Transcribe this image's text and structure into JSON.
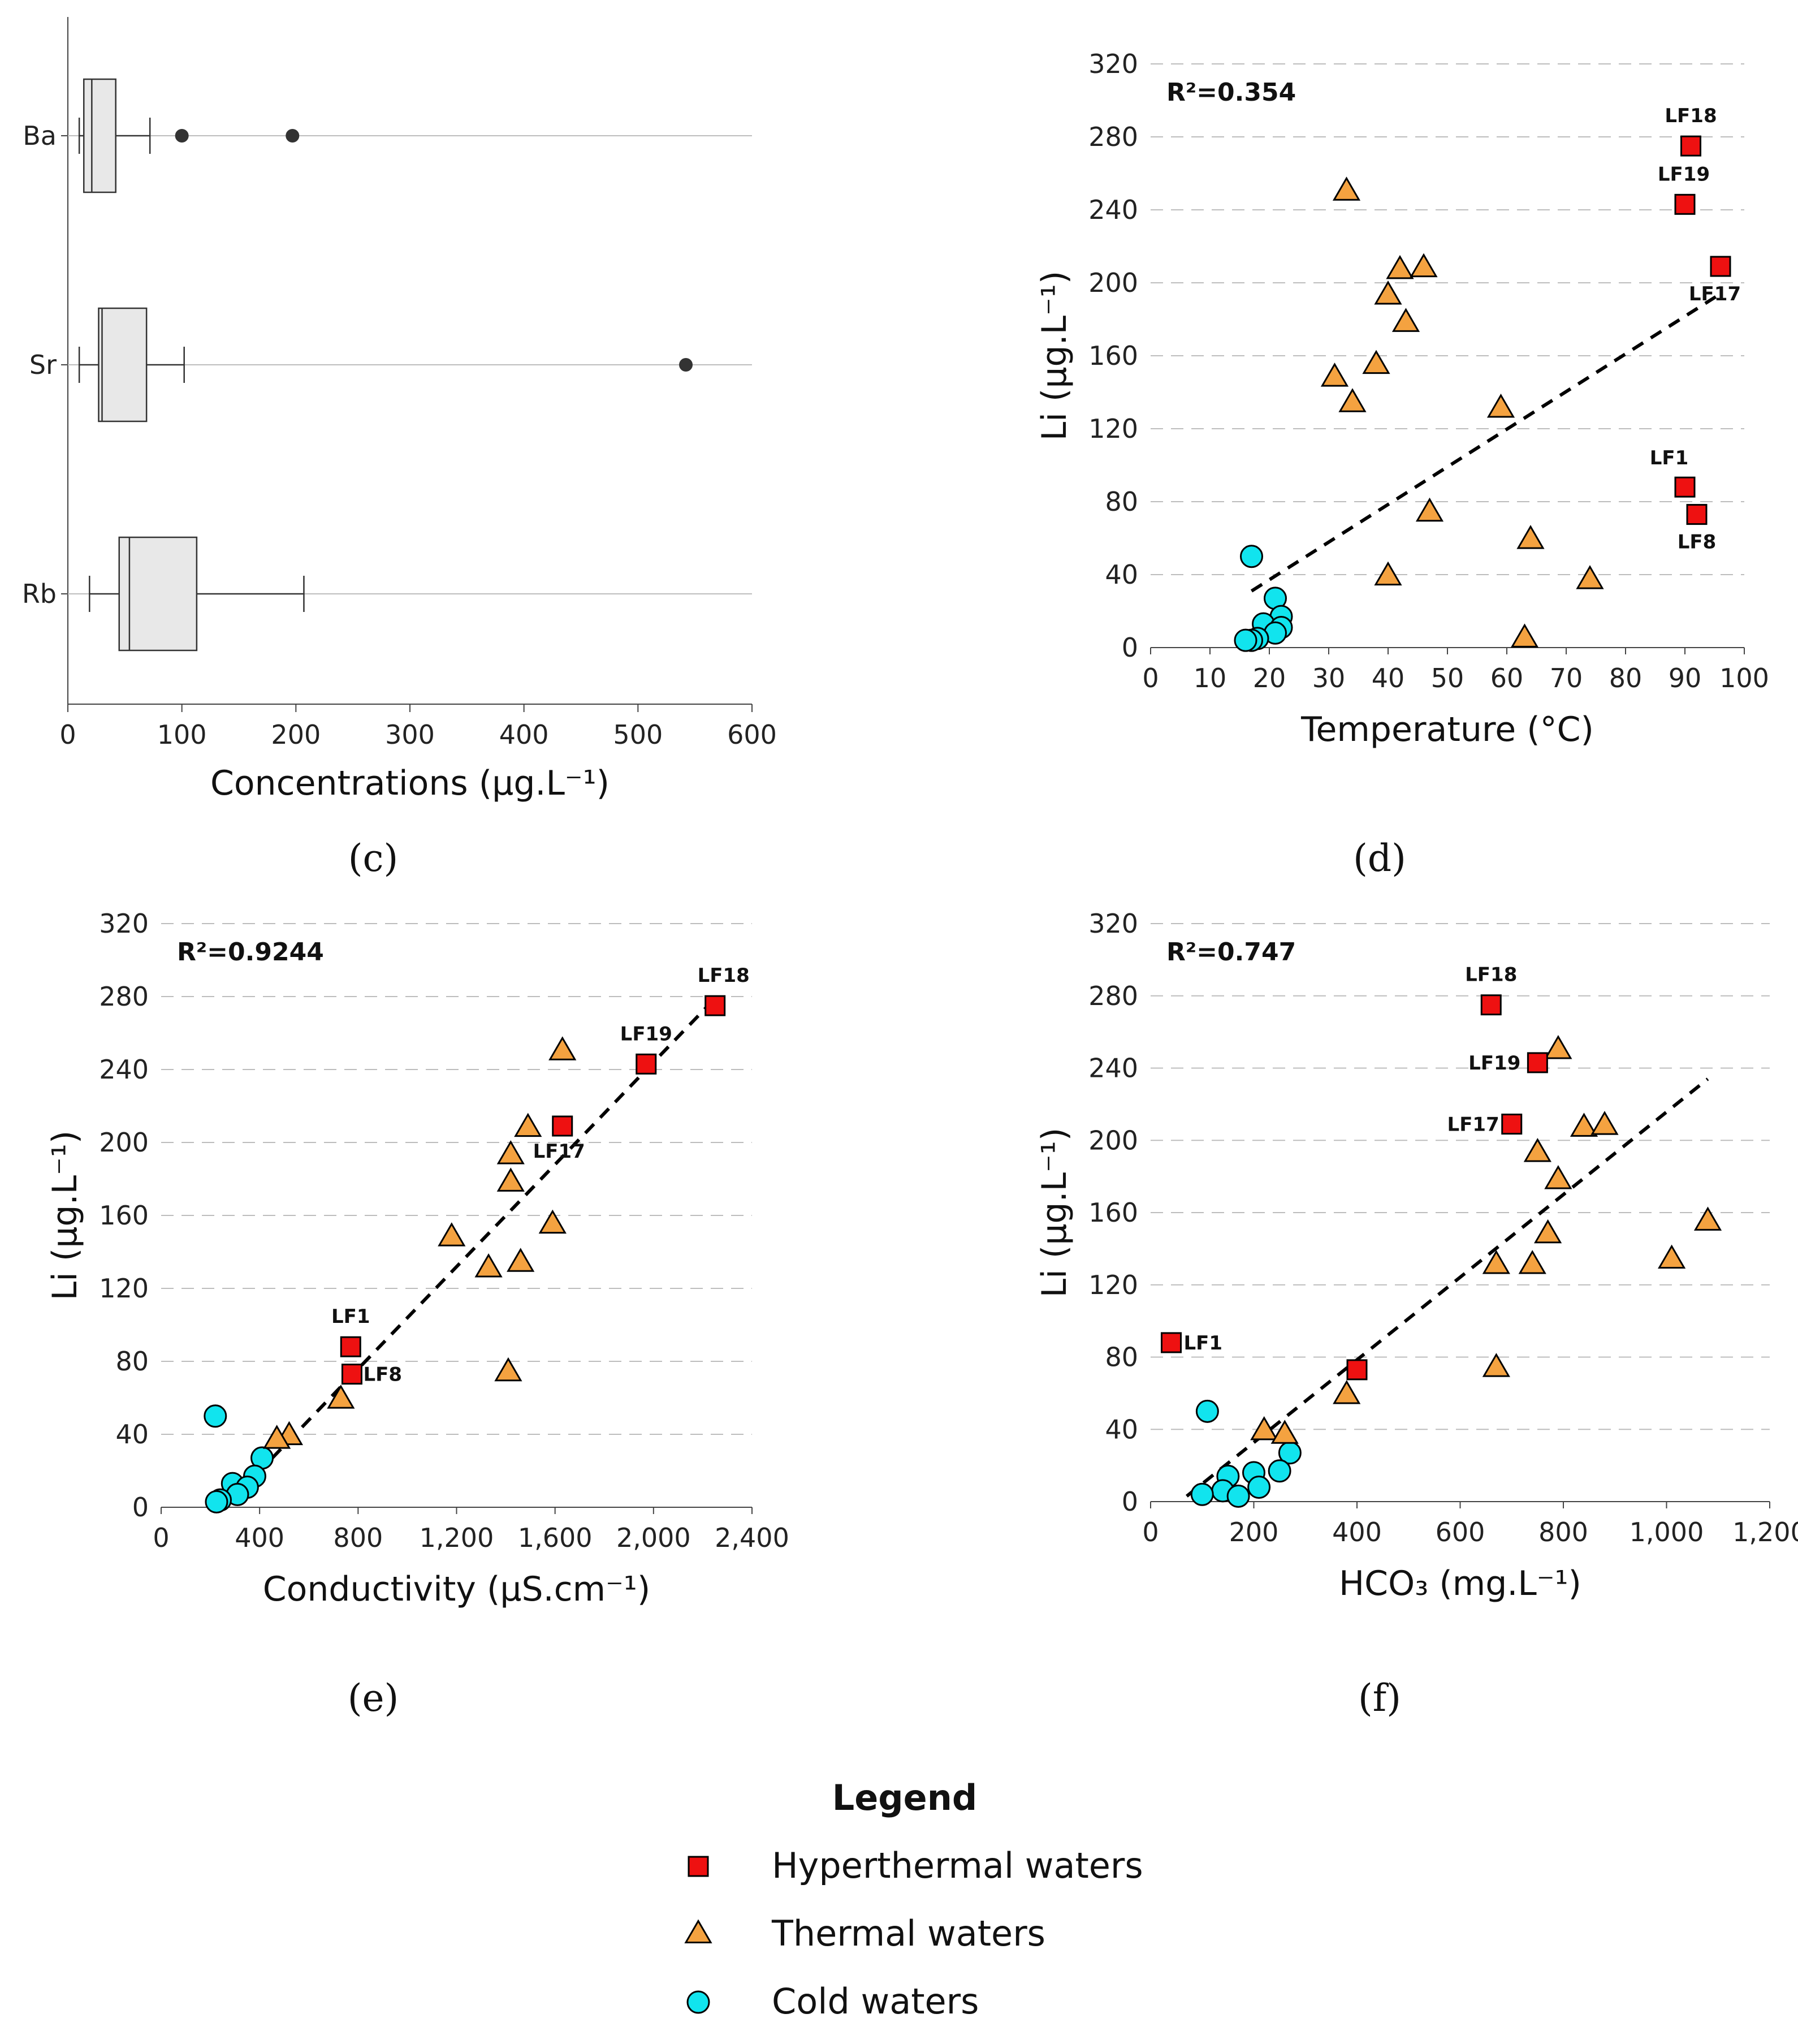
{
  "chart_data": [
    {
      "id": "c",
      "type": "boxplot",
      "caption": "(c)",
      "xlabel": "Concentrations (µg.L⁻¹)",
      "xlim": [
        0,
        600
      ],
      "xticks": [
        0,
        100,
        200,
        300,
        400,
        500,
        600
      ],
      "categories": [
        "Ba",
        "Sr",
        "Rb"
      ],
      "boxes": [
        {
          "label": "Ba",
          "min": 10,
          "q1": 14,
          "median": 21,
          "q3": 42,
          "max": 72,
          "outliers": [
            100,
            197
          ]
        },
        {
          "label": "Sr",
          "min": 10,
          "q1": 27,
          "median": 30,
          "q3": 69,
          "max": 102,
          "outliers": [
            542
          ]
        },
        {
          "label": "Rb",
          "min": 19,
          "q1": 45,
          "median": 54,
          "q3": 113,
          "max": 207,
          "outliers": []
        }
      ]
    },
    {
      "id": "d",
      "type": "scatter",
      "caption": "(d)",
      "r2": "R²=0.354",
      "xlabel": "Temperature (°C)",
      "ylabel": "Li (µg.L⁻¹)",
      "xlim": [
        0,
        100
      ],
      "ylim": [
        0,
        320
      ],
      "xticks": [
        "0",
        "10",
        "20",
        "30",
        "40",
        "50",
        "60",
        "70",
        "80",
        "90",
        "100"
      ],
      "yticks": [
        "0",
        "40",
        "80",
        "120",
        "160",
        "200",
        "240",
        "280",
        "320"
      ],
      "trendline": [
        [
          17,
          31
        ],
        [
          96,
          194
        ]
      ],
      "series": [
        {
          "name": "Hyperthermal waters",
          "marker": "square",
          "points": [
            {
              "x": 91,
              "y": 275,
              "label": "LF18"
            },
            {
              "x": 90,
              "y": 243,
              "label": "LF19"
            },
            {
              "x": 96,
              "y": 209,
              "label": "LF17"
            },
            {
              "x": 90,
              "y": 88,
              "label": "LF1"
            },
            {
              "x": 92,
              "y": 73,
              "label": "LF8"
            }
          ]
        },
        {
          "name": "Thermal waters",
          "marker": "triangle",
          "points": [
            {
              "x": 33,
              "y": 250
            },
            {
              "x": 42,
              "y": 207
            },
            {
              "x": 46,
              "y": 208
            },
            {
              "x": 40,
              "y": 193
            },
            {
              "x": 43,
              "y": 178
            },
            {
              "x": 38,
              "y": 155
            },
            {
              "x": 31,
              "y": 148
            },
            {
              "x": 34,
              "y": 134
            },
            {
              "x": 59,
              "y": 131
            },
            {
              "x": 47,
              "y": 74
            },
            {
              "x": 64,
              "y": 59
            },
            {
              "x": 40,
              "y": 39
            },
            {
              "x": 74,
              "y": 37
            },
            {
              "x": 63,
              "y": 5
            }
          ]
        },
        {
          "name": "Cold waters",
          "marker": "circle",
          "points": [
            {
              "x": 17,
              "y": 50
            },
            {
              "x": 21,
              "y": 27
            },
            {
              "x": 22,
              "y": 17
            },
            {
              "x": 19,
              "y": 13
            },
            {
              "x": 22,
              "y": 11
            },
            {
              "x": 21,
              "y": 8
            },
            {
              "x": 18,
              "y": 5
            },
            {
              "x": 17,
              "y": 4
            },
            {
              "x": 16,
              "y": 4
            }
          ]
        }
      ]
    },
    {
      "id": "e",
      "type": "scatter",
      "caption": "(e)",
      "r2": "R²=0.9244",
      "xlabel": "Conductivity (µS.cm⁻¹)",
      "ylabel": "Li (µg.L⁻¹)",
      "xlim": [
        0,
        2400
      ],
      "ylim": [
        0,
        320
      ],
      "xticks": [
        "0",
        "400",
        "800",
        "1,200",
        "1,600",
        "2,000",
        "2,400"
      ],
      "yticks": [
        "0",
        "40",
        "80",
        "120",
        "160",
        "200",
        "240",
        "280",
        "320"
      ],
      "trendline": [
        [
          330,
          10
        ],
        [
          2250,
          279
        ]
      ],
      "series": [
        {
          "name": "Hyperthermal waters",
          "marker": "square",
          "points": [
            {
              "x": 2250,
              "y": 275,
              "label": "LF18"
            },
            {
              "x": 1970,
              "y": 243,
              "label": "LF19"
            },
            {
              "x": 1630,
              "y": 209,
              "label": "LF17"
            },
            {
              "x": 770,
              "y": 88,
              "label": "LF1"
            },
            {
              "x": 775,
              "y": 73,
              "label": "LF8"
            }
          ]
        },
        {
          "name": "Thermal waters",
          "marker": "triangle",
          "points": [
            {
              "x": 1630,
              "y": 250
            },
            {
              "x": 1490,
              "y": 208
            },
            {
              "x": 1420,
              "y": 193
            },
            {
              "x": 1420,
              "y": 178
            },
            {
              "x": 1590,
              "y": 155
            },
            {
              "x": 1180,
              "y": 148
            },
            {
              "x": 1460,
              "y": 134
            },
            {
              "x": 1330,
              "y": 131
            },
            {
              "x": 1410,
              "y": 74
            },
            {
              "x": 730,
              "y": 59
            },
            {
              "x": 520,
              "y": 39
            },
            {
              "x": 470,
              "y": 37
            }
          ]
        },
        {
          "name": "Cold waters",
          "marker": "circle",
          "points": [
            {
              "x": 220,
              "y": 50
            },
            {
              "x": 410,
              "y": 27
            },
            {
              "x": 380,
              "y": 17
            },
            {
              "x": 290,
              "y": 13
            },
            {
              "x": 350,
              "y": 11
            },
            {
              "x": 310,
              "y": 7
            },
            {
              "x": 240,
              "y": 4
            },
            {
              "x": 225,
              "y": 3
            }
          ]
        }
      ]
    },
    {
      "id": "f",
      "type": "scatter",
      "caption": "(f)",
      "r2": "R²=0.747",
      "xlabel": "HCO₃ (mg.L⁻¹)",
      "ylabel": "Li (µg.L⁻¹)",
      "xlim": [
        0,
        1200
      ],
      "ylim": [
        0,
        320
      ],
      "xticks": [
        "0",
        "200",
        "400",
        "600",
        "800",
        "1,000",
        "1,200"
      ],
      "yticks": [
        "0",
        "40",
        "80",
        "120",
        "160",
        "200",
        "240",
        "280",
        "320"
      ],
      "trendline": [
        [
          70,
          3
        ],
        [
          1080,
          234
        ]
      ],
      "series": [
        {
          "name": "Hyperthermal waters",
          "marker": "square",
          "points": [
            {
              "x": 660,
              "y": 275,
              "label": "LF18"
            },
            {
              "x": 750,
              "y": 243,
              "label": "LF19"
            },
            {
              "x": 700,
              "y": 209,
              "label": "LF17"
            },
            {
              "x": 40,
              "y": 88,
              "label": "LF1"
            },
            {
              "x": 400,
              "y": 73,
              "label": ""
            }
          ]
        },
        {
          "name": "Thermal waters",
          "marker": "triangle",
          "points": [
            {
              "x": 790,
              "y": 250
            },
            {
              "x": 840,
              "y": 207
            },
            {
              "x": 880,
              "y": 208
            },
            {
              "x": 750,
              "y": 193
            },
            {
              "x": 790,
              "y": 178
            },
            {
              "x": 1080,
              "y": 155
            },
            {
              "x": 770,
              "y": 148
            },
            {
              "x": 1010,
              "y": 134
            },
            {
              "x": 670,
              "y": 131
            },
            {
              "x": 740,
              "y": 131
            },
            {
              "x": 670,
              "y": 74
            },
            {
              "x": 380,
              "y": 59
            },
            {
              "x": 220,
              "y": 39
            },
            {
              "x": 260,
              "y": 37
            }
          ]
        },
        {
          "name": "Cold waters",
          "marker": "circle",
          "points": [
            {
              "x": 110,
              "y": 50
            },
            {
              "x": 270,
              "y": 27
            },
            {
              "x": 200,
              "y": 16
            },
            {
              "x": 150,
              "y": 14
            },
            {
              "x": 250,
              "y": 17
            },
            {
              "x": 210,
              "y": 8
            },
            {
              "x": 140,
              "y": 6
            },
            {
              "x": 100,
              "y": 4
            },
            {
              "x": 170,
              "y": 3
            }
          ]
        }
      ]
    }
  ],
  "legend": {
    "title": "Legend",
    "items": [
      {
        "label": "Hyperthermal waters",
        "marker": "square"
      },
      {
        "label": "Thermal waters",
        "marker": "triangle"
      },
      {
        "label": "Cold waters",
        "marker": "circle"
      }
    ]
  },
  "colors": {
    "hyperthermal": "#ee1111",
    "thermal": "#f4a240",
    "cold": "#11e4ee",
    "box": "#e8e8e8",
    "grid": "#bdbdbd"
  }
}
